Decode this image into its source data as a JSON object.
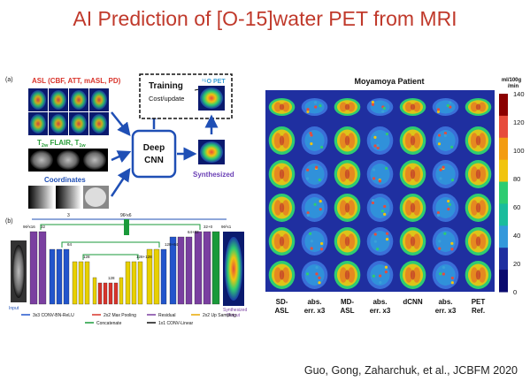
{
  "slide": {
    "title": "AI Prediction of [O-15]water PET from MRI",
    "citation": "Guo, Gong, Zaharchuk, et al., JCBFM 2020"
  },
  "panel_a": {
    "label": "(a)",
    "asl_title": "ASL (CBF, ATT, mASL, PD)",
    "t2_prefix": "T",
    "t2_sub": "2w",
    "flair_text": " FLAIR, T",
    "t1_sub": "1w",
    "coordinates": "Coordinates",
    "deep_cnn": [
      "Deep",
      "CNN"
    ],
    "training": "Training",
    "cost_update": "Cost/update",
    "o_pet": "¹⁵O PET",
    "synthesized": "Synthesized"
  },
  "panel_b": {
    "label": "(b)",
    "input": "Input",
    "output": [
      "Synthesized",
      "Output"
    ],
    "channels_top": "96²x6",
    "count_3": "3",
    "legend": [
      {
        "text": "3x3 CONV-BN-ReLU",
        "color": "#2255cc"
      },
      {
        "text": "2x2 Max Pooling",
        "color": "#d9342b"
      },
      {
        "text": "Residual",
        "color": "#7a3fa0"
      },
      {
        "text": "2x2 Up Sampling",
        "color": "#e8a800"
      },
      {
        "text": "Concatenate",
        "color": "#1a9a3a"
      },
      {
        "text": "1x1 CONV-Linear",
        "color": "#111111"
      }
    ],
    "layer_labels": [
      "96²x16",
      "32",
      "64",
      "128",
      "128",
      "128+128",
      "128+64",
      "64+32",
      "32+0",
      "96²x1"
    ]
  },
  "figure_right": {
    "title": "Moyamoya Patient",
    "colorbar_unit": [
      "ml/100g",
      "/min"
    ],
    "colorbar_ticks": [
      "140",
      "120",
      "100",
      "80",
      "60",
      "40",
      "20",
      "0"
    ],
    "colorbar_range": [
      0,
      140
    ],
    "columns": [
      [
        "SD-",
        "ASL"
      ],
      [
        "abs.",
        "err. x3"
      ],
      [
        "MD-",
        "ASL"
      ],
      [
        "abs.",
        "err. x3"
      ],
      [
        "dCNN",
        ""
      ],
      [
        "abs.",
        "err. x3"
      ],
      [
        "PET",
        "Ref."
      ]
    ],
    "rows": 6
  }
}
